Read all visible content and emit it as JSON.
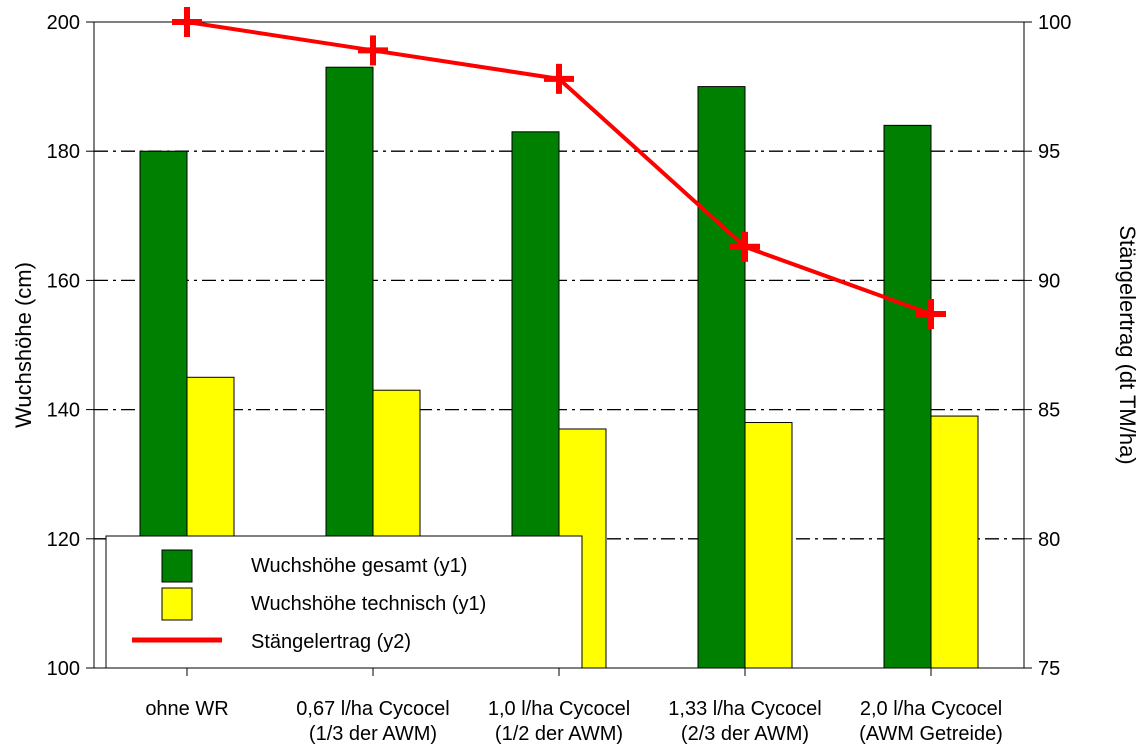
{
  "chart_data": {
    "type": "bar",
    "categories": [
      [
        "ohne WR",
        ""
      ],
      [
        "0,67 l/ha Cycocel",
        "(1/3 der AWM)"
      ],
      [
        "1,0 l/ha Cycocel",
        "(1/2 der AWM)"
      ],
      [
        "1,33 l/ha Cycocel",
        "(2/3 der AWM)"
      ],
      [
        "2,0 l/ha Cycocel",
        "(AWM Getreide)"
      ]
    ],
    "series": [
      {
        "name": "Wuchshöhe gesamt (y1)",
        "type": "bar",
        "axis": "y1",
        "color": "#008000",
        "values": [
          180,
          193,
          183,
          190,
          184
        ]
      },
      {
        "name": "Wuchshöhe technisch (y1)",
        "type": "bar",
        "axis": "y1",
        "color": "#ffff00",
        "values": [
          145,
          143,
          137,
          138,
          139
        ]
      },
      {
        "name": "Stängelertrag (y2)",
        "type": "line",
        "axis": "y2",
        "color": "#ff0000",
        "marker": "plus",
        "values": [
          100,
          98.9,
          97.8,
          91.3,
          88.7
        ]
      }
    ],
    "ylabel": "Wuchshöhe (cm)",
    "y2label": "Stängelertrag (dt TM/ha)",
    "xlabel": "",
    "title": "",
    "ylim": [
      100,
      200
    ],
    "y_ticks": [
      "100",
      "120",
      "140",
      "160",
      "180",
      "200"
    ],
    "y2lim": [
      75,
      100
    ],
    "y2_ticks": [
      "75",
      "80",
      "85",
      "90",
      "95",
      "100"
    ],
    "grid": "horizontal dash-dot",
    "legend_position": "bottom-left"
  }
}
